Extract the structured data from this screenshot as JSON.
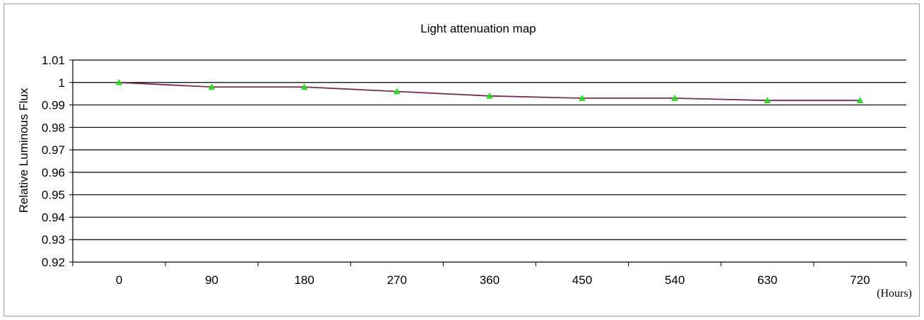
{
  "chart_data": {
    "type": "line",
    "title": "Light attenuation map",
    "xlabel": "",
    "x_unit": "(Hours)",
    "ylabel": "Relative Luminous Flux",
    "categories": [
      "0",
      "90",
      "180",
      "270",
      "360",
      "450",
      "540",
      "630",
      "720"
    ],
    "series": [
      {
        "values": [
          1.0,
          0.998,
          0.998,
          0.996,
          0.994,
          0.993,
          0.993,
          0.992,
          0.992
        ],
        "line_color": "#7a2a52",
        "marker_color": "#22e01e",
        "marker": "triangle"
      }
    ],
    "ylim": [
      0.92,
      1.01
    ],
    "yticks": [
      "0.92",
      "0.93",
      "0.94",
      "0.95",
      "0.96",
      "0.97",
      "0.98",
      "0.99",
      "1",
      "1.01"
    ],
    "grid": true,
    "legend": "none"
  }
}
